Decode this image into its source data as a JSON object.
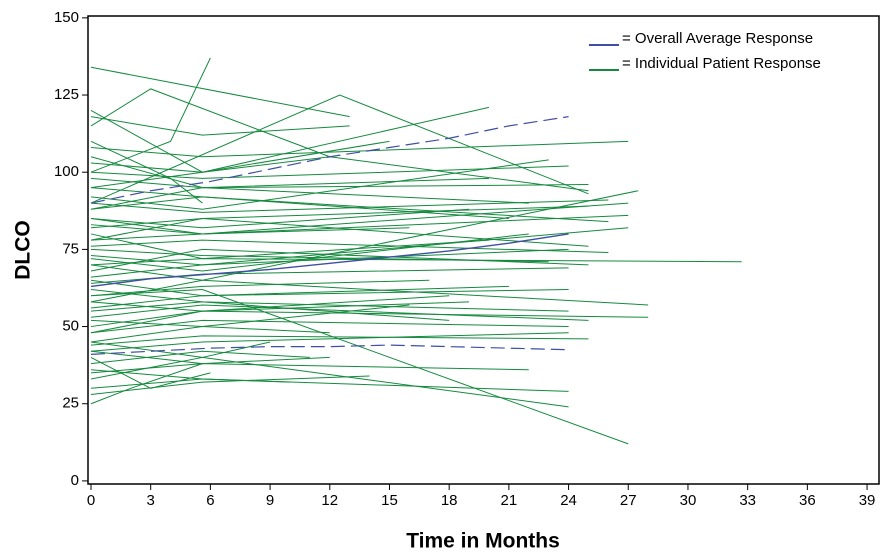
{
  "chart_data": {
    "type": "line",
    "xlabel": "Time in Months",
    "ylabel": "DLCO",
    "xlim": [
      -0.15,
      39.6
    ],
    "ylim": [
      -1,
      150.6
    ],
    "xticks": [
      0,
      3,
      6,
      9,
      12,
      15,
      18,
      21,
      24,
      27,
      30,
      33,
      36,
      39
    ],
    "yticks": [
      0,
      25,
      50,
      75,
      100,
      125,
      150
    ],
    "legend": "top-right",
    "series": [
      {
        "name": "Overall Average Response",
        "color": "#3f4fa3",
        "x": [
          0,
          3,
          6,
          9,
          12,
          15,
          18,
          21,
          24
        ],
        "values": [
          63,
          65.5,
          67,
          68.5,
          70.5,
          72.5,
          74.5,
          77,
          80
        ],
        "upper": [
          90,
          94,
          97,
          101,
          105,
          108,
          111,
          115,
          118
        ],
        "lower": [
          41,
          42,
          43,
          43.5,
          43.5,
          44,
          43.5,
          43,
          42.5
        ]
      },
      {
        "name": "Individual Patient Response",
        "color": "#158a3e",
        "lines": [
          {
            "x": [
              0,
              5.6,
              24
            ],
            "values": [
              73,
              70,
              75
            ]
          },
          {
            "x": [
              0,
              5.6,
              18
            ],
            "values": [
              55,
              58,
              52
            ]
          },
          {
            "x": [
              0,
              5.6,
              27
            ],
            "values": [
              85,
              80,
              90
            ]
          },
          {
            "x": [
              0,
              13
            ],
            "values": [
              134,
              118
            ]
          },
          {
            "x": [
              0,
              5.6,
              12,
              25
            ],
            "values": [
              95,
              100,
              105,
              94
            ]
          },
          {
            "x": [
              0,
              3,
              6
            ],
            "values": [
              40,
              30,
              35
            ]
          },
          {
            "x": [
              0,
              5.6,
              32.7
            ],
            "values": [
              70,
              72,
              71
            ]
          },
          {
            "x": [
              0,
              5.6,
              27
            ],
            "values": [
              60,
              62,
              12
            ]
          },
          {
            "x": [
              0,
              5.6,
              28
            ],
            "values": [
              48,
              55,
              53
            ]
          },
          {
            "x": [
              0,
              12.5,
              25
            ],
            "values": [
              90,
              125,
              93
            ]
          },
          {
            "x": [
              0,
              5.6,
              20
            ],
            "values": [
              103,
              100,
              121
            ]
          },
          {
            "x": [
              0,
              5.6,
              24
            ],
            "values": [
              30,
              33,
              29
            ]
          },
          {
            "x": [
              0,
              4,
              6
            ],
            "values": [
              100,
              110,
              137
            ]
          },
          {
            "x": [
              0,
              5.6,
              24
            ],
            "values": [
              45,
              40,
              24
            ]
          },
          {
            "x": [
              0,
              5.6,
              25
            ],
            "values": [
              78,
              85,
              89
            ]
          },
          {
            "x": [
              0,
              5.6,
              21
            ],
            "values": [
              65,
              60,
              63
            ]
          },
          {
            "x": [
              0,
              5.6,
              16
            ],
            "values": [
              52,
              50,
              57
            ]
          },
          {
            "x": [
              0,
              3,
              12
            ],
            "values": [
              115,
              127,
              105
            ]
          },
          {
            "x": [
              0,
              5.6,
              27
            ],
            "values": [
              108,
              105,
              110
            ]
          },
          {
            "x": [
              0,
              5.6,
              22
            ],
            "values": [
              35,
              38,
              36
            ]
          },
          {
            "x": [
              0,
              5.6,
              26
            ],
            "values": [
              88,
              92,
              84
            ]
          },
          {
            "x": [
              0,
              5.6,
              24
            ],
            "values": [
              42,
              45,
              48
            ]
          },
          {
            "x": [
              0,
              5.6,
              25
            ],
            "values": [
              68,
              75,
              70
            ]
          },
          {
            "x": [
              0,
              5.6,
              27.5
            ],
            "values": [
              58,
              65,
              94
            ]
          },
          {
            "x": [
              0,
              2,
              5.6
            ],
            "values": [
              25,
              30,
              38
            ]
          },
          {
            "x": [
              0,
              5.6,
              15
            ],
            "values": [
              120,
              100,
              110
            ]
          },
          {
            "x": [
              0,
              5.6,
              9
            ],
            "values": [
              33,
              40,
              45
            ]
          },
          {
            "x": [
              0,
              5.6,
              20
            ],
            "values": [
              80,
              72,
              78
            ]
          },
          {
            "x": [
              0,
              5.6,
              24
            ],
            "values": [
              62,
              58,
              55
            ]
          },
          {
            "x": [
              0,
              5.6,
              23
            ],
            "values": [
              92,
              88,
              104
            ]
          },
          {
            "x": [
              0,
              5.6,
              18
            ],
            "values": [
              50,
              55,
              60
            ]
          },
          {
            "x": [
              0,
              5.6,
              26
            ],
            "values": [
              76,
              78,
              74
            ]
          },
          {
            "x": [
              0,
              5.6,
              11
            ],
            "values": [
              38,
              42,
              40
            ]
          },
          {
            "x": [
              0,
              5.6,
              25
            ],
            "values": [
              98,
              95,
              96
            ]
          },
          {
            "x": [
              0,
              5.6,
              22
            ],
            "values": [
              72,
              68,
              80
            ]
          },
          {
            "x": [
              0,
              5.6,
              12
            ],
            "values": [
              45,
              50,
              48
            ]
          },
          {
            "x": [
              0,
              5.6,
              19
            ],
            "values": [
              85,
              82,
              88
            ]
          },
          {
            "x": [
              0,
              5.6,
              24
            ],
            "values": [
              56,
              60,
              62
            ]
          },
          {
            "x": [
              0,
              5.6,
              27
            ],
            "values": [
              66,
              70,
              82
            ]
          },
          {
            "x": [
              0,
              5.6,
              14
            ],
            "values": [
              28,
              32,
              34
            ]
          },
          {
            "x": [
              0,
              5.6,
              25
            ],
            "values": [
              82,
              85,
              76
            ]
          },
          {
            "x": [
              0,
              5.6,
              20
            ],
            "values": [
              105,
              95,
              98
            ]
          },
          {
            "x": [
              0,
              5.6,
              24
            ],
            "values": [
              48,
              52,
              50
            ]
          },
          {
            "x": [
              0,
              5.6,
              17
            ],
            "values": [
              60,
              63,
              65
            ]
          },
          {
            "x": [
              0,
              5.6,
              26
            ],
            "values": [
              90,
              87,
              91
            ]
          },
          {
            "x": [
              0,
              4,
              5.6
            ],
            "values": [
              110,
              98,
              90
            ]
          },
          {
            "x": [
              0,
              5.6,
              23
            ],
            "values": [
              75,
              73,
              71
            ]
          },
          {
            "x": [
              0,
              5.6,
              12
            ],
            "values": [
              42,
              38,
              40
            ]
          },
          {
            "x": [
              0,
              5.6,
              21
            ],
            "values": [
              95,
              92,
              85
            ]
          },
          {
            "x": [
              0,
              5.6,
              28
            ],
            "values": [
              70,
              65,
              57
            ]
          },
          {
            "x": [
              0,
              5.6,
              25
            ],
            "values": [
              53,
              57,
              52
            ]
          },
          {
            "x": [
              0,
              5.6,
              13
            ],
            "values": [
              118,
              112,
              115
            ]
          },
          {
            "x": [
              0,
              5.6,
              24
            ],
            "values": [
              64,
              67,
              69
            ]
          },
          {
            "x": [
              0,
              5.6,
              10
            ],
            "values": [
              36,
              33,
              32
            ]
          },
          {
            "x": [
              0,
              5.6,
              22
            ],
            "values": [
              88,
              95,
              90
            ]
          },
          {
            "x": [
              0,
              5.6,
              27
            ],
            "values": [
              78,
              80,
              86
            ]
          },
          {
            "x": [
              0,
              5.6,
              19
            ],
            "values": [
              58,
              55,
              58
            ]
          },
          {
            "x": [
              0,
              5.6,
              24
            ],
            "values": [
              100,
              98,
              102
            ]
          },
          {
            "x": [
              0,
              5.6,
              25
            ],
            "values": [
              44,
              47,
              46
            ]
          },
          {
            "x": [
              0,
              5.6,
              16
            ],
            "values": [
              83,
              80,
              82
            ]
          }
        ]
      }
    ]
  }
}
